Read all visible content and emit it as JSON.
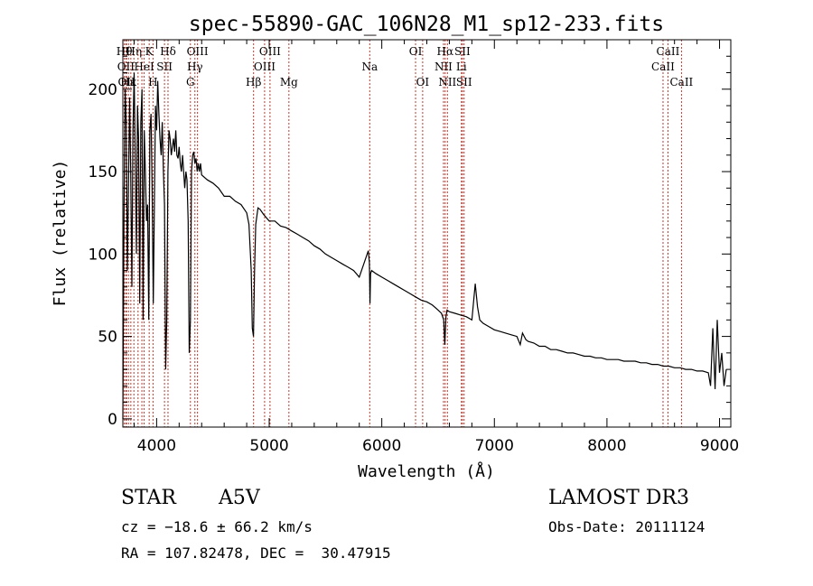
{
  "chart_data": {
    "type": "line",
    "title": "spec-55890-GAC_106N28_M1_sp12-233.fits",
    "xlabel": "Wavelength (Å)",
    "ylabel": "Flux (relative)",
    "xlim": [
      3700,
      9100
    ],
    "ylim": [
      -5,
      230
    ],
    "xticks": [
      4000,
      5000,
      6000,
      7000,
      8000,
      9000
    ],
    "yticks": [
      0,
      50,
      100,
      150,
      200
    ],
    "grid": false,
    "series": [
      {
        "x": [
          3700,
          3710,
          3720,
          3730,
          3740,
          3750,
          3760,
          3770,
          3780,
          3790,
          3800,
          3810,
          3820,
          3830,
          3840,
          3850,
          3860,
          3870,
          3880,
          3890,
          3900,
          3910,
          3920,
          3930,
          3940,
          3950,
          3960,
          3970,
          3980,
          3990,
          4000,
          4010,
          4020,
          4030,
          4040,
          4050,
          4060,
          4070,
          4080,
          4090,
          4100,
          4110,
          4120,
          4130,
          4140,
          4150,
          4160,
          4170,
          4180,
          4190,
          4200,
          4210,
          4220,
          4230,
          4240,
          4250,
          4260,
          4270,
          4280,
          4290,
          4300,
          4310,
          4320,
          4330,
          4340,
          4350,
          4360,
          4370,
          4380,
          4390,
          4400,
          4450,
          4500,
          4550,
          4600,
          4650,
          4700,
          4750,
          4800,
          4820,
          4840,
          4850,
          4860,
          4870,
          4880,
          4900,
          4920,
          4950,
          5000,
          5050,
          5100,
          5150,
          5200,
          5250,
          5300,
          5350,
          5400,
          5450,
          5500,
          5550,
          5600,
          5650,
          5700,
          5750,
          5800,
          5850,
          5880,
          5890,
          5895,
          5900,
          5910,
          5950,
          6000,
          6050,
          6100,
          6150,
          6200,
          6250,
          6300,
          6350,
          6400,
          6450,
          6500,
          6530,
          6550,
          6560,
          6570,
          6580,
          6600,
          6650,
          6700,
          6750,
          6800,
          6830,
          6850,
          6870,
          6900,
          6950,
          7000,
          7050,
          7100,
          7150,
          7200,
          7230,
          7250,
          7280,
          7300,
          7350,
          7400,
          7450,
          7500,
          7550,
          7600,
          7650,
          7700,
          7750,
          7800,
          7850,
          7900,
          7950,
          8000,
          8050,
          8100,
          8150,
          8200,
          8250,
          8300,
          8350,
          8400,
          8450,
          8500,
          8550,
          8600,
          8650,
          8700,
          8750,
          8800,
          8850,
          8900,
          8920,
          8940,
          8960,
          8980,
          9000,
          9020,
          9040,
          9060
        ],
        "y": [
          0,
          120,
          200,
          180,
          90,
          140,
          195,
          150,
          80,
          175,
          210,
          160,
          100,
          190,
          170,
          70,
          180,
          200,
          60,
          175,
          150,
          120,
          130,
          60,
          175,
          185,
          140,
          70,
          130,
          190,
          175,
          205,
          185,
          170,
          160,
          180,
          150,
          130,
          30,
          60,
          150,
          175,
          170,
          160,
          165,
          170,
          162,
          175,
          160,
          158,
          165,
          155,
          150,
          160,
          150,
          140,
          150,
          145,
          120,
          40,
          60,
          150,
          160,
          162,
          155,
          158,
          150,
          155,
          150,
          155,
          148,
          145,
          143,
          140,
          135,
          135,
          132,
          130,
          125,
          118,
          90,
          55,
          50,
          90,
          118,
          128,
          127,
          124,
          120,
          120,
          117,
          116,
          114,
          112,
          110,
          108,
          105,
          103,
          100,
          98,
          96,
          94,
          92,
          90,
          86,
          96,
          102,
          95,
          70,
          88,
          90,
          88,
          86,
          84,
          82,
          80,
          78,
          76,
          74,
          72,
          71,
          69,
          66,
          64,
          60,
          45,
          62,
          66,
          65,
          64,
          63,
          62,
          60,
          82,
          68,
          60,
          58,
          56,
          54,
          53,
          52,
          51,
          50,
          45,
          52,
          48,
          47,
          46,
          44,
          44,
          42,
          42,
          41,
          40,
          40,
          39,
          38,
          38,
          37,
          37,
          36,
          36,
          36,
          35,
          35,
          35,
          34,
          34,
          33,
          33,
          32,
          32,
          31,
          31,
          30,
          30,
          29,
          29,
          28,
          20,
          55,
          18,
          60,
          28,
          40,
          20,
          30
        ]
      }
    ],
    "lines": [
      {
        "wl": 3713,
        "label": "Hθ",
        "row": 0
      },
      {
        "wl": 3727,
        "label": "OII",
        "row": 1
      },
      {
        "wl": 3733,
        "label": "OII",
        "row": 2
      },
      {
        "wl": 3750,
        "label": "Hκ",
        "row": 2
      },
      {
        "wl": 3771,
        "label": "",
        "row": 2
      },
      {
        "wl": 3798,
        "label": "Hη",
        "row": 0
      },
      {
        "wl": 3835,
        "label": "",
        "row": 0
      },
      {
        "wl": 3869,
        "label": "",
        "row": 0
      },
      {
        "wl": 3889,
        "label": "HeI",
        "row": 1
      },
      {
        "wl": 3934,
        "label": "K",
        "row": 0
      },
      {
        "wl": 3968,
        "label": "H",
        "row": 2
      },
      {
        "wl": 4070,
        "label": "SII",
        "row": 1
      },
      {
        "wl": 4101,
        "label": "Hδ",
        "row": 0
      },
      {
        "wl": 4300,
        "label": "G",
        "row": 2
      },
      {
        "wl": 4340,
        "label": "Hγ",
        "row": 1
      },
      {
        "wl": 4363,
        "label": "OIII",
        "row": 0
      },
      {
        "wl": 4861,
        "label": "Hβ",
        "row": 2
      },
      {
        "wl": 4959,
        "label": "OIII",
        "row": 1
      },
      {
        "wl": 5007,
        "label": "OIII",
        "row": 0
      },
      {
        "wl": 5175,
        "label": "Mg",
        "row": 2
      },
      {
        "wl": 5893,
        "label": "Na",
        "row": 1
      },
      {
        "wl": 6300,
        "label": "OI",
        "row": 0
      },
      {
        "wl": 6363,
        "label": "OI",
        "row": 2
      },
      {
        "wl": 6548,
        "label": "NII",
        "row": 1
      },
      {
        "wl": 6563,
        "label": "Hα",
        "row": 0
      },
      {
        "wl": 6583,
        "label": "NII",
        "row": 2
      },
      {
        "wl": 6707,
        "label": "Li",
        "row": 1
      },
      {
        "wl": 6716,
        "label": "SII",
        "row": 0
      },
      {
        "wl": 6731,
        "label": "SII",
        "row": 2
      },
      {
        "wl": 8498,
        "label": "CaII",
        "row": 1
      },
      {
        "wl": 8542,
        "label": "CaII",
        "row": 0
      },
      {
        "wl": 8662,
        "label": "CaII",
        "row": 2
      }
    ]
  },
  "info": {
    "class": "STAR",
    "subclass": "A5V",
    "survey": "LAMOST DR3",
    "cz": "cz = −18.6 ± 66.2 km/s",
    "obs_date": "Obs-Date: 20111124",
    "coords": "RA = 107.82478, DEC =  30.47915"
  }
}
